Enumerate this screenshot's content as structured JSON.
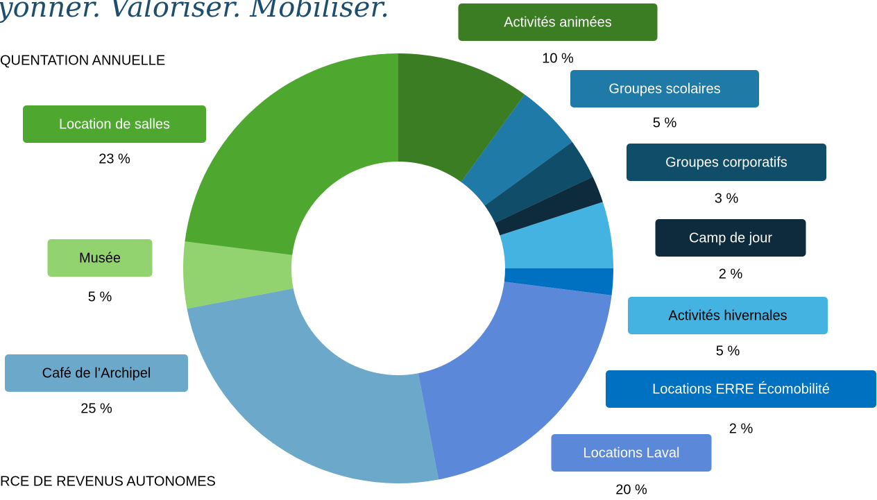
{
  "chart_data": {
    "type": "donut",
    "title": "yonner. Valoriser. Mobiliser.",
    "subtitle": "QUENTATION ANNUELLE",
    "footer": "RCE DE REVENUS AUTONOMES",
    "categories": [
      "Activités animées",
      "Groupes scolaires",
      "Groupes corporatifs",
      "Camp de jour",
      "Activités hivernales",
      "Locations ERRE Écomobilité",
      "Locations Laval",
      "Café de l’Archipel",
      "Musée",
      "Location de salles"
    ],
    "values": [
      10,
      5,
      3,
      2,
      5,
      2,
      20,
      25,
      5,
      23
    ],
    "value_labels": [
      "10 %",
      "5 %",
      "3 %",
      "2 %",
      "5 %",
      "2 %",
      "20 %",
      "25 %",
      "5 %",
      "23 %"
    ],
    "colors": [
      "#3a7d22",
      "#1f7aa8",
      "#0f4d68",
      "#0d2b3c",
      "#45b3e1",
      "#0070c0",
      "#5b88d9",
      "#6ba8ca",
      "#93d36f",
      "#4ea72e"
    ]
  }
}
